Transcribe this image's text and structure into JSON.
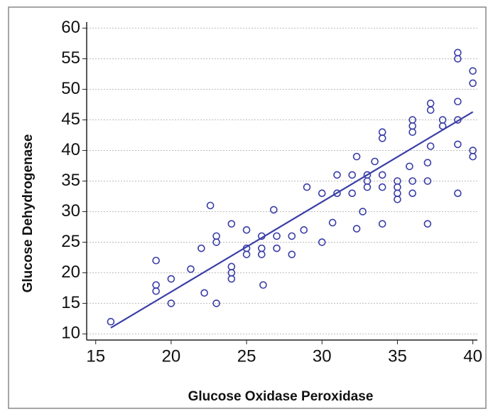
{
  "chart_data": {
    "type": "scatter",
    "xlabel": "Glucose Oxidase Peroxidase",
    "ylabel": "Glucose Dehydrogenase",
    "xlim": [
      14.4,
      40.3
    ],
    "ylim": [
      9,
      61
    ],
    "xticks": [
      15,
      20,
      25,
      30,
      35,
      40
    ],
    "yticks": [
      10,
      15,
      20,
      25,
      30,
      35,
      40,
      45,
      50,
      55,
      60
    ],
    "grid": true,
    "color": "#3a3ea6",
    "x": [
      16,
      19,
      19,
      19,
      20,
      20,
      21.3,
      22,
      22.2,
      22.6,
      23,
      23,
      23,
      24,
      24,
      24,
      24,
      25,
      25,
      25,
      26,
      26,
      26,
      26.1,
      26.8,
      27,
      27,
      28,
      28,
      28.8,
      29,
      30,
      30,
      30.7,
      31,
      31,
      32,
      32,
      32.3,
      32.3,
      32.7,
      33,
      33,
      33,
      33.5,
      34,
      34,
      34,
      34,
      34,
      35,
      35,
      35,
      35,
      35.8,
      36,
      36,
      36,
      36,
      36,
      37,
      37,
      37,
      37.2,
      37.2,
      37.2,
      38,
      38,
      39,
      39,
      39,
      39,
      39,
      39,
      40,
      40,
      40,
      40
    ],
    "values": [
      12,
      22,
      18,
      17,
      19,
      15,
      20.6,
      24,
      16.7,
      31,
      26,
      25,
      15,
      28,
      21,
      20,
      19,
      27,
      24,
      23,
      26,
      24,
      23,
      18,
      30.3,
      26,
      24,
      26,
      23,
      27,
      34,
      25,
      33,
      28.2,
      33,
      36,
      36,
      33,
      39,
      27.2,
      30,
      36,
      35,
      34,
      38.2,
      43,
      42,
      36,
      34,
      28,
      35,
      34,
      33,
      32,
      37.4,
      45,
      44,
      43,
      35,
      33,
      38,
      35,
      28,
      47.7,
      46.6,
      40.7,
      45,
      44,
      56,
      55,
      48,
      45,
      41,
      33,
      53,
      51,
      40,
      39
    ],
    "trendline": {
      "x": [
        16,
        40
      ],
      "values": [
        11,
        46.3
      ],
      "color": "#3a3ea6"
    }
  }
}
